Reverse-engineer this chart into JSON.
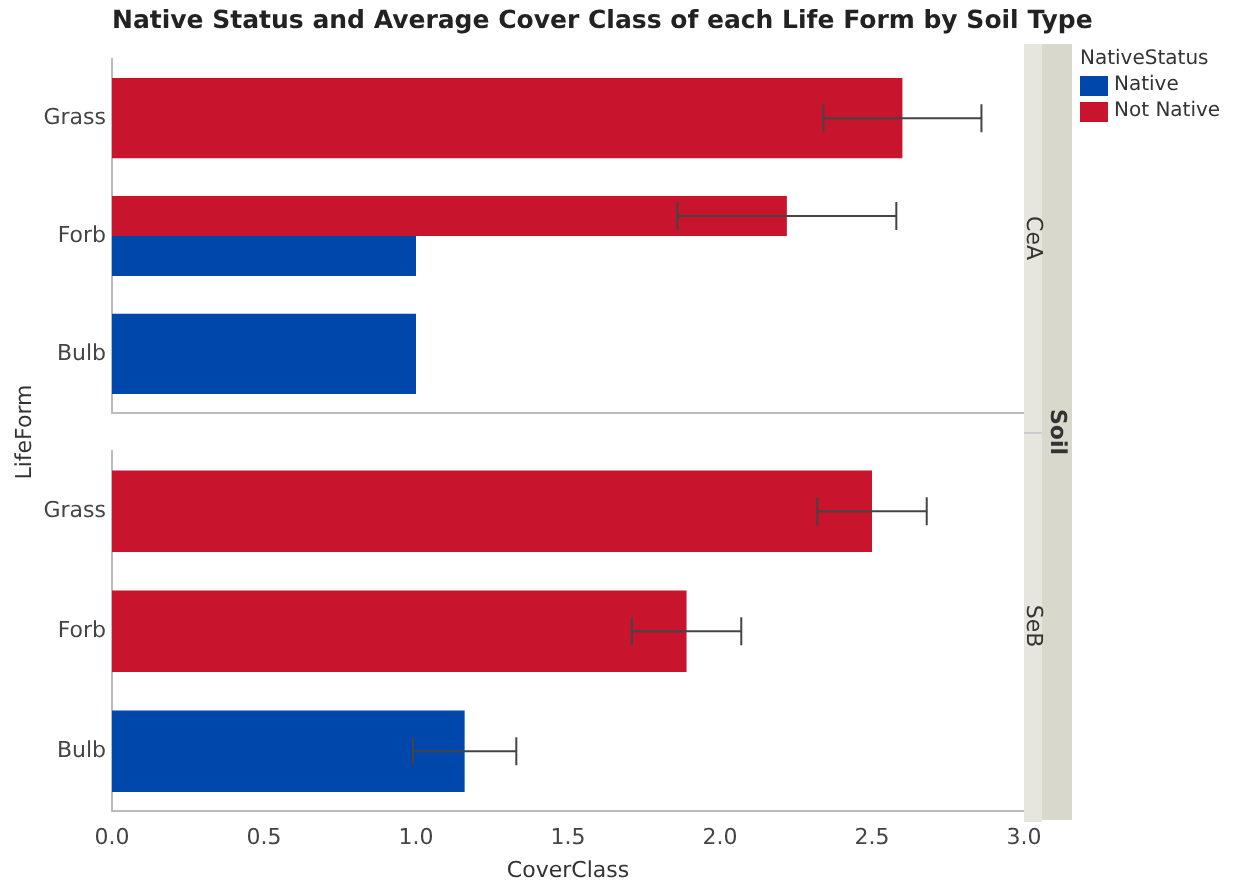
{
  "chart_data": [
    {
      "type": "bar",
      "orientation": "horizontal",
      "title": "Native Status and Average Cover Class of each Life Form by Soil Type",
      "ylabel": "LifeForm",
      "legend_title": "NativeStatus",
      "legend": "right",
      "annotations": [
        "CeA",
        "Soil"
      ],
      "categories": [
        "Grass",
        "Forb",
        "Bulb"
      ],
      "xlim": [
        0,
        3.0
      ],
      "tick_labels": "y",
      "grid": false,
      "series": [
        {
          "name": "Native",
          "color": "#0047ab",
          "values": [
            null,
            1.0,
            1.0
          ],
          "errors": [
            null,
            null,
            null
          ]
        },
        {
          "name": "Not Native",
          "color": "#c8142c",
          "values": [
            2.6,
            2.22,
            null
          ],
          "errors": [
            0.26,
            0.36,
            null
          ]
        }
      ]
    },
    {
      "type": "bar",
      "orientation": "horizontal",
      "xlabel": "CoverClass",
      "annotations": [
        "SeB"
      ],
      "categories": [
        "Grass",
        "Forb",
        "Bulb"
      ],
      "xlim": [
        0,
        3.0
      ],
      "xticks": [
        {
          "value": 0,
          "label": "0.0"
        },
        0.5,
        {
          "value": 1,
          "label": "1.0"
        },
        1.5,
        {
          "value": 2,
          "label": "2.0"
        },
        2.5,
        {
          "value": 3,
          "label": "3.0"
        }
      ],
      "legend": false,
      "grid": false,
      "series": [
        {
          "color": "#0047ab",
          "values": [
            null,
            null,
            1.16
          ],
          "errors": [
            null,
            null,
            0.17
          ]
        },
        {
          "color": "#c8142c",
          "values": [
            2.5,
            1.89,
            null
          ],
          "errors": [
            0.18,
            0.18,
            null
          ]
        }
      ]
    }
  ]
}
